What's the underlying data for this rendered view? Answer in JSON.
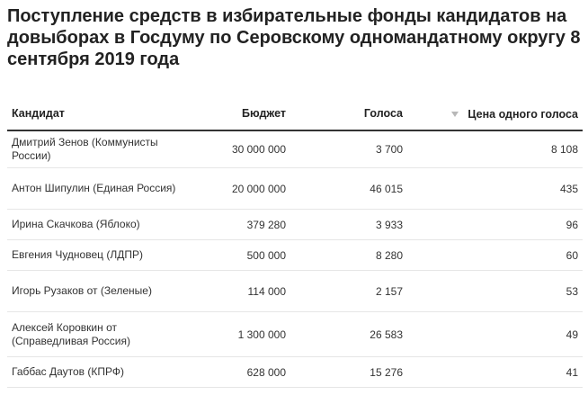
{
  "title": "Поступление средств в избирательные фонды кандидатов на довыборах в Госдуму по Серовскому одномандатному округу 8 сентября 2019 года",
  "table": {
    "headers": {
      "candidate": "Кандидат",
      "budget": "Бюджет",
      "votes": "Голоса",
      "price": "Цена одного голоса"
    },
    "sort_icon": "sort-descending-icon",
    "rows": [
      {
        "candidate": "Дмитрий Зенов (Коммунисты России)",
        "budget": "30 000 000",
        "votes": "3 700",
        "price": "8 108"
      },
      {
        "candidate": "Антон Шипулин (Единая Россия)",
        "budget": "20 000 000",
        "votes": "46 015",
        "price": "435"
      },
      {
        "candidate": "Ирина Скачкова (Яблоко)",
        "budget": "379 280",
        "votes": "3 933",
        "price": "96"
      },
      {
        "candidate": "Евгения Чудновец (ЛДПР)",
        "budget": "500 000",
        "votes": "8 280",
        "price": "60"
      },
      {
        "candidate": "Игорь Рузаков от (Зеленые)",
        "budget": "114 000",
        "votes": "2 157",
        "price": "53"
      },
      {
        "candidate": "Алексей Коровкин от (Справедливая Россия)",
        "budget": "1 300 000",
        "votes": "26 583",
        "price": "49"
      },
      {
        "candidate": "Габбас Даутов (КПРФ)",
        "budget": "628 000",
        "votes": "15 276",
        "price": "41"
      }
    ]
  }
}
